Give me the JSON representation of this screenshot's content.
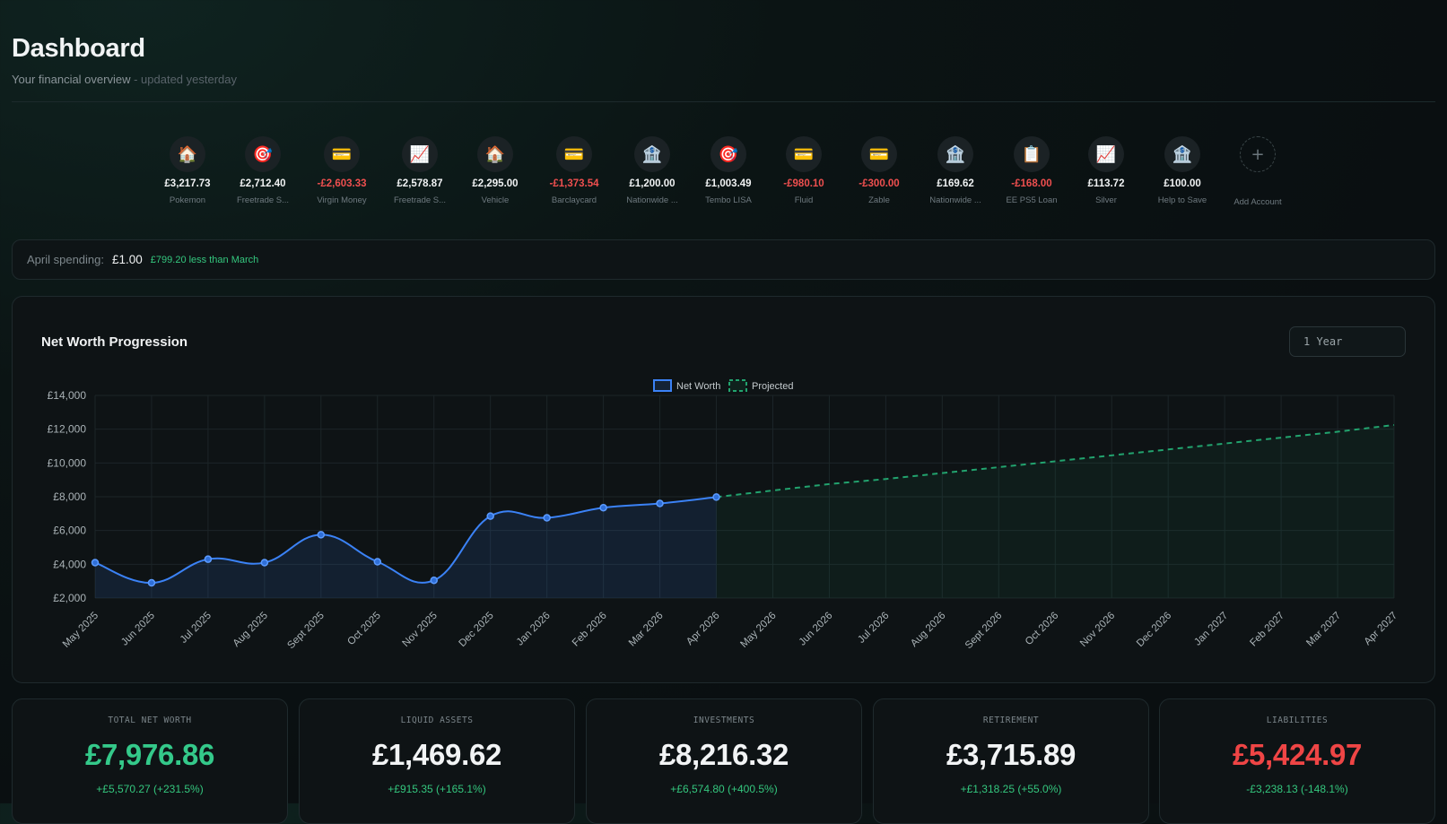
{
  "header": {
    "title": "Dashboard",
    "subtitle": "Your financial overview",
    "updated": " - updated yesterday"
  },
  "accounts": [
    {
      "icon": "house-icon",
      "glyph": "🏠",
      "amount": "£3,217.73",
      "name": "Pokemon",
      "negative": false
    },
    {
      "icon": "target-icon",
      "glyph": "🎯",
      "amount": "£2,712.40",
      "name": "Freetrade S...",
      "negative": false
    },
    {
      "icon": "credit-card-icon",
      "glyph": "💳",
      "amount": "-£2,603.33",
      "name": "Virgin Money",
      "negative": true
    },
    {
      "icon": "chart-up-icon",
      "glyph": "📈",
      "amount": "£2,578.87",
      "name": "Freetrade S...",
      "negative": false
    },
    {
      "icon": "house-icon",
      "glyph": "🏠",
      "amount": "£2,295.00",
      "name": "Vehicle",
      "negative": false
    },
    {
      "icon": "credit-card-icon",
      "glyph": "💳",
      "amount": "-£1,373.54",
      "name": "Barclaycard",
      "negative": true
    },
    {
      "icon": "bank-icon",
      "glyph": "🏦",
      "amount": "£1,200.00",
      "name": "Nationwide ...",
      "negative": false
    },
    {
      "icon": "target-icon",
      "glyph": "🎯",
      "amount": "£1,003.49",
      "name": "Tembo LISA",
      "negative": false
    },
    {
      "icon": "credit-card-icon",
      "glyph": "💳",
      "amount": "-£980.10",
      "name": "Fluid",
      "negative": true
    },
    {
      "icon": "credit-card-icon",
      "glyph": "💳",
      "amount": "-£300.00",
      "name": "Zable",
      "negative": true
    },
    {
      "icon": "bank-icon",
      "glyph": "🏦",
      "amount": "£169.62",
      "name": "Nationwide ...",
      "negative": false
    },
    {
      "icon": "clipboard-icon",
      "glyph": "📋",
      "amount": "-£168.00",
      "name": "EE PS5 Loan",
      "negative": true
    },
    {
      "icon": "chart-up-icon",
      "glyph": "📈",
      "amount": "£113.72",
      "name": "Silver",
      "negative": false
    },
    {
      "icon": "bank-icon",
      "glyph": "🏦",
      "amount": "£100.00",
      "name": "Help to Save",
      "negative": false
    }
  ],
  "add_account": {
    "glyph": "+",
    "label": "Add Account"
  },
  "spending": {
    "label": "April spending:",
    "value": "£1.00",
    "comparison": "£799.20 less than March"
  },
  "net_worth_chart": {
    "title": "Net Worth Progression",
    "range_selected": "1 Year"
  },
  "chart_data": {
    "type": "line",
    "title": "Net Worth Progression",
    "x": [
      "May 2025",
      "Jun 2025",
      "Jul 2025",
      "Aug 2025",
      "Sept 2025",
      "Oct 2025",
      "Nov 2025",
      "Dec 2025",
      "Jan 2026",
      "Feb 2026",
      "Mar 2026",
      "Apr 2026",
      "May 2026",
      "Jun 2026",
      "Jul 2026",
      "Aug 2026",
      "Sept 2026",
      "Oct 2026",
      "Nov 2026",
      "Dec 2026",
      "Jan 2027",
      "Feb 2027",
      "Mar 2027",
      "Apr 2027"
    ],
    "series": [
      {
        "name": "Net Worth",
        "style": "solid",
        "color": "#3b82f6",
        "values": [
          4100,
          2900,
          4300,
          4100,
          5750,
          4150,
          3050,
          6850,
          6750,
          7350,
          7600,
          7980,
          null,
          null,
          null,
          null,
          null,
          null,
          null,
          null,
          null,
          null,
          null,
          null
        ]
      },
      {
        "name": "Projected",
        "style": "dashed",
        "color": "#22a36e",
        "values": [
          null,
          null,
          null,
          null,
          null,
          null,
          null,
          null,
          null,
          null,
          null,
          7980,
          8370,
          8750,
          9050,
          9400,
          9750,
          10100,
          10450,
          10800,
          11150,
          11500,
          11850,
          12250
        ]
      }
    ],
    "ylim": [
      2000,
      14000
    ],
    "yticks": [
      2000,
      4000,
      6000,
      8000,
      10000,
      12000,
      14000
    ],
    "ytick_labels": [
      "£2,000",
      "£4,000",
      "£6,000",
      "£8,000",
      "£10,000",
      "£12,000",
      "£14,000"
    ],
    "grid": true,
    "legend": "top-center"
  },
  "stats": [
    {
      "label": "TOTAL NET WORTH",
      "value": "£7,976.86",
      "change": "+£5,570.27 (+231.5%)",
      "tone": "pos"
    },
    {
      "label": "LIQUID ASSETS",
      "value": "£1,469.62",
      "change": "+£915.35 (+165.1%)",
      "tone": "plain"
    },
    {
      "label": "INVESTMENTS",
      "value": "£8,216.32",
      "change": "+£6,574.80 (+400.5%)",
      "tone": "plain"
    },
    {
      "label": "RETIREMENT",
      "value": "£3,715.89",
      "change": "+£1,318.25 (+55.0%)",
      "tone": "plain"
    },
    {
      "label": "LIABILITIES",
      "value": "£5,424.97",
      "change": "-£3,238.13 (-148.1%)",
      "tone": "neg"
    }
  ]
}
